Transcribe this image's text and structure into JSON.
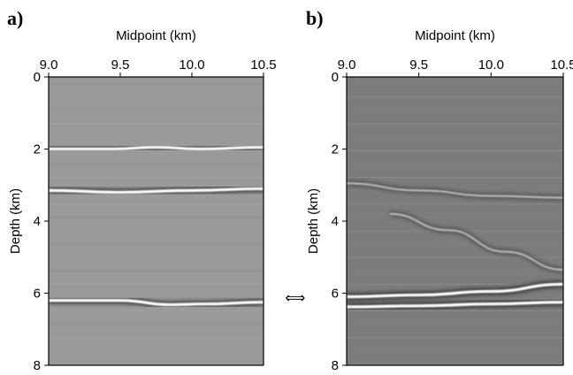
{
  "figure": {
    "connector_symbol": "⟺",
    "panels": [
      {
        "label": "a)",
        "xlabel": "Midpoint (km)",
        "ylabel": "Depth (km)",
        "xticks": [
          "9.0",
          "9.5",
          "10.0",
          "10.5"
        ],
        "yticks": [
          "0",
          "2",
          "4",
          "6",
          "8"
        ],
        "background": "#9a9a9a"
      },
      {
        "label": "b)",
        "xlabel": "Midpoint (km)",
        "ylabel": "Depth (km)",
        "xticks": [
          "9.0",
          "9.5",
          "10.0",
          "10.5"
        ],
        "yticks": [
          "0",
          "2",
          "4",
          "6",
          "8"
        ],
        "background": "#7c7c7c"
      }
    ]
  },
  "chart_data": [
    {
      "type": "image",
      "panel": "a",
      "xlabel": "Midpoint (km)",
      "ylabel": "Depth (km)",
      "xlim": [
        9.0,
        10.5
      ],
      "ylim": [
        8,
        0
      ],
      "reflectors": [
        {
          "x": [
            9.0,
            9.45,
            9.75,
            10.05,
            10.5
          ],
          "depth": [
            2.0,
            2.0,
            1.95,
            2.0,
            1.95
          ]
        },
        {
          "x": [
            9.0,
            9.5,
            10.0,
            10.5
          ],
          "depth": [
            3.15,
            3.2,
            3.15,
            3.1
          ]
        },
        {
          "x": [
            9.0,
            9.5,
            9.85,
            10.1,
            10.5
          ],
          "depth": [
            6.05,
            6.05,
            6.05,
            6.05,
            6.05
          ]
        },
        {
          "x": [
            9.0,
            9.5,
            9.85,
            10.1,
            10.5
          ],
          "depth": [
            6.2,
            6.2,
            6.32,
            6.3,
            6.25
          ]
        }
      ]
    },
    {
      "type": "image",
      "panel": "b",
      "xlabel": "Midpoint (km)",
      "ylabel": "Depth (km)",
      "xlim": [
        9.0,
        10.5
      ],
      "ylim": [
        8,
        0
      ],
      "reflectors": [
        {
          "x": [
            9.0,
            9.5,
            10.0,
            10.5
          ],
          "depth": [
            2.95,
            3.15,
            3.3,
            3.35
          ]
        },
        {
          "x": [
            9.3,
            9.7,
            10.1,
            10.5
          ],
          "depth": [
            3.8,
            4.25,
            4.85,
            5.35
          ]
        },
        {
          "x": [
            9.0,
            9.5,
            10.0,
            10.5
          ],
          "depth": [
            6.1,
            6.05,
            5.95,
            5.75
          ]
        },
        {
          "x": [
            9.0,
            9.5,
            10.0,
            10.5
          ],
          "depth": [
            6.38,
            6.35,
            6.3,
            6.25
          ]
        }
      ]
    }
  ]
}
